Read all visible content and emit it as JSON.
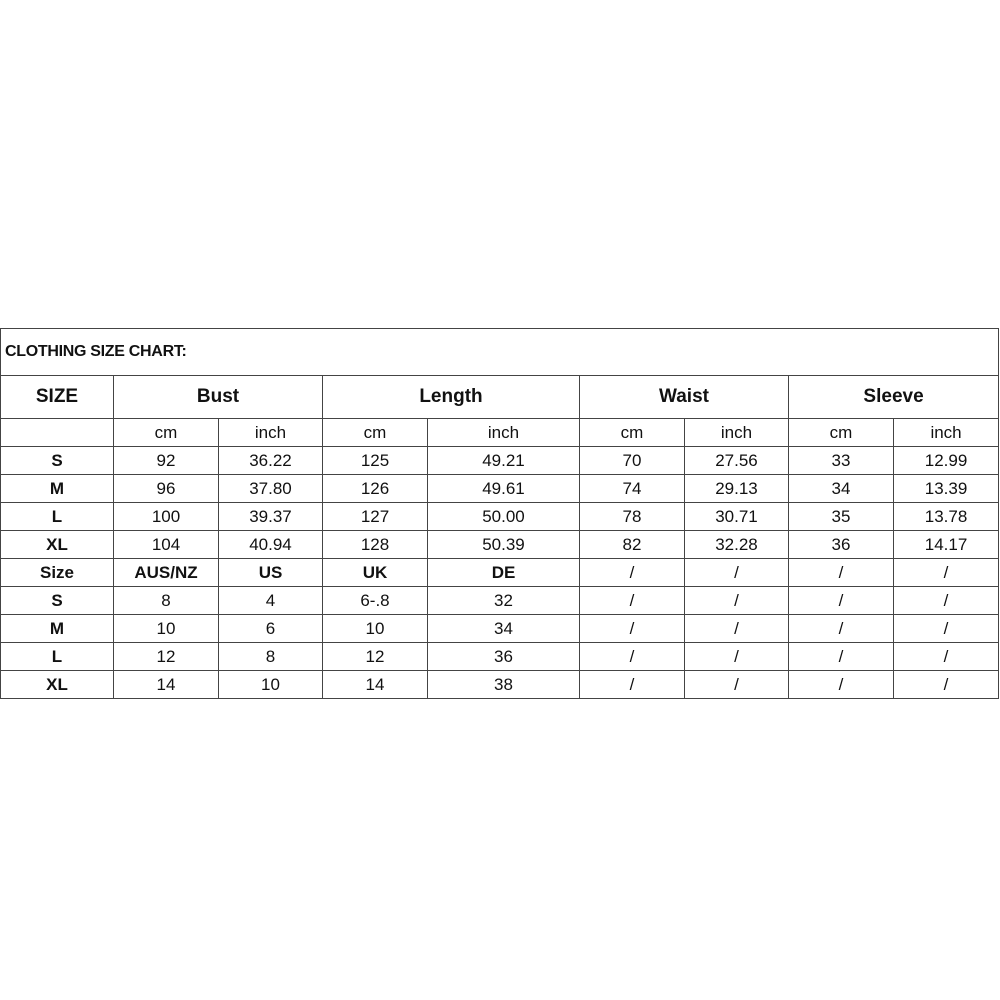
{
  "title": "CLOTHING SIZE CHART:",
  "header": {
    "size": "SIZE",
    "groups": [
      "Bust",
      "Length",
      "Waist",
      "Sleeve"
    ]
  },
  "units": [
    "",
    "cm",
    "inch",
    "cm",
    "inch",
    "cm",
    "inch",
    "cm",
    "inch"
  ],
  "measurements": [
    [
      "S",
      "92",
      "36.22",
      "125",
      "49.21",
      "70",
      "27.56",
      "33",
      "12.99"
    ],
    [
      "M",
      "96",
      "37.80",
      "126",
      "49.61",
      "74",
      "29.13",
      "34",
      "13.39"
    ],
    [
      "L",
      "100",
      "39.37",
      "127",
      "50.00",
      "78",
      "30.71",
      "35",
      "13.78"
    ],
    [
      "XL",
      "104",
      "40.94",
      "128",
      "50.39",
      "82",
      "32.28",
      "36",
      "14.17"
    ]
  ],
  "conversion_header": [
    "Size",
    "AUS/NZ",
    "US",
    "UK",
    "DE",
    "/",
    "/",
    "/",
    "/"
  ],
  "conversions": [
    [
      "S",
      "8",
      "4",
      "6-.8",
      "32",
      "/",
      "/",
      "/",
      "/"
    ],
    [
      "M",
      "10",
      "6",
      "10",
      "34",
      "/",
      "/",
      "/",
      "/"
    ],
    [
      "L",
      "12",
      "8",
      "12",
      "36",
      "/",
      "/",
      "/",
      "/"
    ],
    [
      "XL",
      "14",
      "10",
      "14",
      "38",
      "/",
      "/",
      "/",
      "/"
    ]
  ]
}
